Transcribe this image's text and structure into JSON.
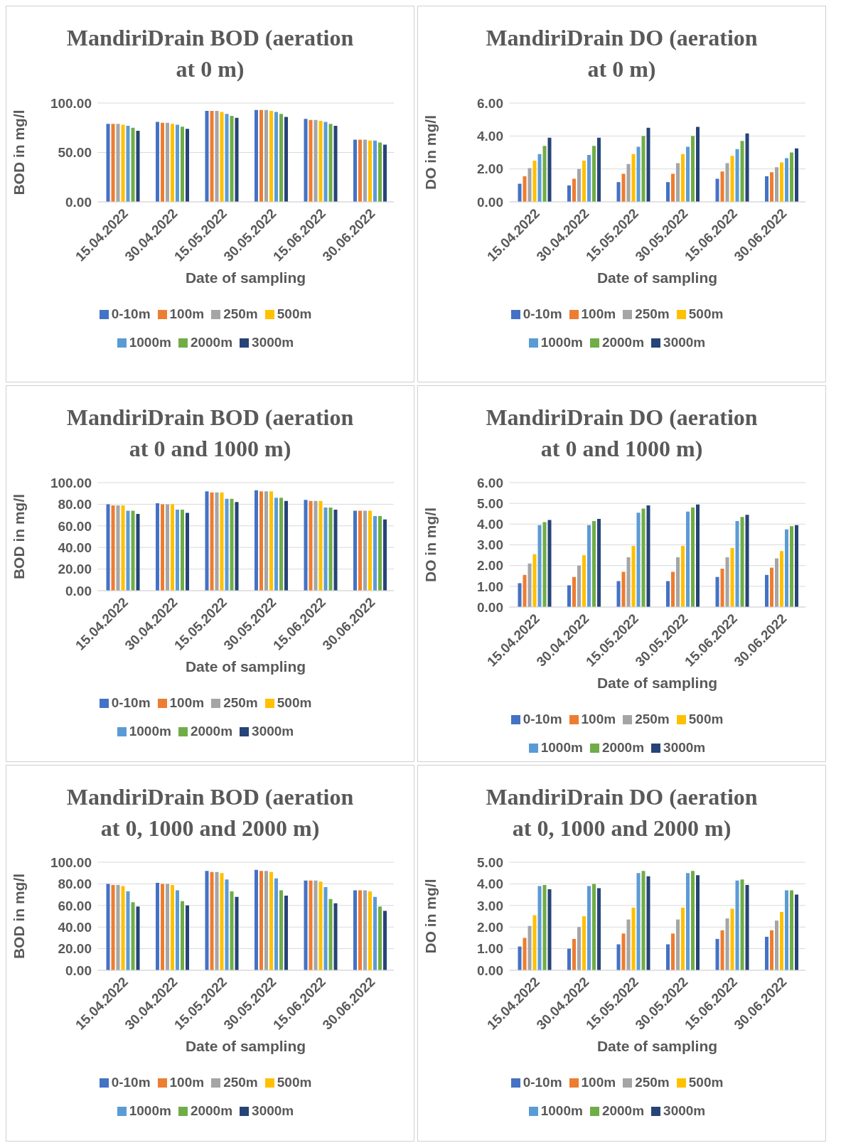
{
  "chart_data": [
    {
      "type": "bar",
      "title": "MandiriDrain BOD (aeration at 0 m)",
      "xlabel": "Date of sampling",
      "ylabel": "BOD in mg/l",
      "categories": [
        "15.04.2022",
        "30.04.2022",
        "15.05.2022",
        "30.05.2022",
        "15.06.2022",
        "30.06.2022"
      ],
      "ylim": [
        0,
        100
      ],
      "yticks": [
        {
          "value": 0,
          "label": "0.00"
        },
        {
          "value": 50,
          "label": "50.00"
        },
        {
          "value": 100,
          "label": "100.00"
        }
      ],
      "grid": "y",
      "legend": "bottom",
      "series": [
        {
          "name": "0-10m",
          "color": "#4472c4",
          "values": [
            79,
            81,
            92,
            93,
            84,
            63
          ]
        },
        {
          "name": "100m",
          "color": "#ed7d31",
          "values": [
            79,
            80,
            92,
            93,
            83,
            63
          ]
        },
        {
          "name": "250m",
          "color": "#a5a5a5",
          "values": [
            79,
            80,
            92,
            93,
            83,
            63
          ]
        },
        {
          "name": "500m",
          "color": "#ffc000",
          "values": [
            78,
            79,
            91,
            92,
            82,
            62
          ]
        },
        {
          "name": "1000m",
          "color": "#5b9bd5",
          "values": [
            77,
            78,
            89,
            91,
            81,
            62
          ]
        },
        {
          "name": "2000m",
          "color": "#70ad47",
          "values": [
            75,
            76,
            87,
            89,
            79,
            60
          ]
        },
        {
          "name": "3000m",
          "color": "#264478",
          "values": [
            72,
            74,
            85,
            86,
            77,
            58
          ]
        }
      ]
    },
    {
      "type": "bar",
      "title": "MandiriDrain DO (aeration at 0 m)",
      "xlabel": "Date of sampling",
      "ylabel": "DO in mg/l",
      "categories": [
        "15.04.2022",
        "30.04.2022",
        "15.05.2022",
        "30.05.2022",
        "15.06.2022",
        "30.06.2022"
      ],
      "ylim": [
        0,
        6
      ],
      "yticks": [
        {
          "value": 0,
          "label": "0.00"
        },
        {
          "value": 2,
          "label": "2.00"
        },
        {
          "value": 4,
          "label": "4.00"
        },
        {
          "value": 6,
          "label": "6.00"
        }
      ],
      "grid": "y",
      "legend": "bottom",
      "series": [
        {
          "name": "0-10m",
          "color": "#4472c4",
          "values": [
            1.1,
            1.0,
            1.2,
            1.2,
            1.4,
            1.55
          ]
        },
        {
          "name": "100m",
          "color": "#ed7d31",
          "values": [
            1.55,
            1.4,
            1.7,
            1.7,
            1.85,
            1.8
          ]
        },
        {
          "name": "250m",
          "color": "#a5a5a5",
          "values": [
            2.05,
            2.0,
            2.3,
            2.35,
            2.35,
            2.1
          ]
        },
        {
          "name": "500m",
          "color": "#ffc000",
          "values": [
            2.5,
            2.5,
            2.9,
            2.9,
            2.8,
            2.4
          ]
        },
        {
          "name": "1000m",
          "color": "#5b9bd5",
          "values": [
            2.9,
            2.85,
            3.35,
            3.35,
            3.2,
            2.65
          ]
        },
        {
          "name": "2000m",
          "color": "#70ad47",
          "values": [
            3.4,
            3.4,
            4.0,
            4.0,
            3.7,
            3.0
          ]
        },
        {
          "name": "3000m",
          "color": "#264478",
          "values": [
            3.9,
            3.9,
            4.5,
            4.55,
            4.15,
            3.25
          ]
        }
      ]
    },
    {
      "type": "bar",
      "title": "MandiriDrain BOD (aeration at 0 and 1000 m)",
      "xlabel": "Date of sampling",
      "ylabel": "BOD in mg/l",
      "categories": [
        "15.04.2022",
        "30.04.2022",
        "15.05.2022",
        "30.05.2022",
        "15.06.2022",
        "30.06.2022"
      ],
      "ylim": [
        0,
        100
      ],
      "yticks": [
        {
          "value": 0,
          "label": "0.00"
        },
        {
          "value": 20,
          "label": "20.00"
        },
        {
          "value": 40,
          "label": "40.00"
        },
        {
          "value": 60,
          "label": "60.00"
        },
        {
          "value": 80,
          "label": "80.00"
        },
        {
          "value": 100,
          "label": "100.00"
        }
      ],
      "grid": "y",
      "legend": "bottom",
      "series": [
        {
          "name": "0-10m",
          "color": "#4472c4",
          "values": [
            80,
            81,
            92,
            93,
            84,
            74
          ]
        },
        {
          "name": "100m",
          "color": "#ed7d31",
          "values": [
            79,
            80,
            91,
            92,
            83,
            74
          ]
        },
        {
          "name": "250m",
          "color": "#a5a5a5",
          "values": [
            79,
            80,
            91,
            92,
            83,
            74
          ]
        },
        {
          "name": "500m",
          "color": "#ffc000",
          "values": [
            79,
            80,
            91,
            92,
            83,
            74
          ]
        },
        {
          "name": "1000m",
          "color": "#5b9bd5",
          "values": [
            74,
            75,
            85,
            86,
            77,
            69
          ]
        },
        {
          "name": "2000m",
          "color": "#70ad47",
          "values": [
            74,
            75,
            85,
            86,
            77,
            69
          ]
        },
        {
          "name": "3000m",
          "color": "#264478",
          "values": [
            71,
            72,
            82,
            83,
            75,
            66
          ]
        }
      ]
    },
    {
      "type": "bar",
      "title": "MandiriDrain DO (aeration at 0 and 1000 m)",
      "xlabel": "Date of sampling",
      "ylabel": "DO in mg/l",
      "categories": [
        "15.04.2022",
        "30.04.2022",
        "15.05.2022",
        "30.05.2022",
        "15.06.2022",
        "30.06.2022"
      ],
      "ylim": [
        0,
        6
      ],
      "yticks": [
        {
          "value": 0,
          "label": "0.00"
        },
        {
          "value": 1,
          "label": "1.00"
        },
        {
          "value": 2,
          "label": "2.00"
        },
        {
          "value": 3,
          "label": "3.00"
        },
        {
          "value": 4,
          "label": "4.00"
        },
        {
          "value": 5,
          "label": "5.00"
        },
        {
          "value": 6,
          "label": "6.00"
        }
      ],
      "grid": "y",
      "legend": "bottom",
      "series": [
        {
          "name": "0-10m",
          "color": "#4472c4",
          "values": [
            1.15,
            1.05,
            1.25,
            1.25,
            1.45,
            1.55
          ]
        },
        {
          "name": "100m",
          "color": "#ed7d31",
          "values": [
            1.55,
            1.45,
            1.7,
            1.7,
            1.85,
            1.9
          ]
        },
        {
          "name": "250m",
          "color": "#a5a5a5",
          "values": [
            2.1,
            2.0,
            2.4,
            2.4,
            2.4,
            2.35
          ]
        },
        {
          "name": "500m",
          "color": "#ffc000",
          "values": [
            2.55,
            2.5,
            2.95,
            2.95,
            2.85,
            2.7
          ]
        },
        {
          "name": "1000m",
          "color": "#5b9bd5",
          "values": [
            3.95,
            3.95,
            4.55,
            4.6,
            4.15,
            3.75
          ]
        },
        {
          "name": "2000m",
          "color": "#70ad47",
          "values": [
            4.1,
            4.15,
            4.75,
            4.8,
            4.35,
            3.9
          ]
        },
        {
          "name": "3000m",
          "color": "#264478",
          "values": [
            4.2,
            4.25,
            4.9,
            4.95,
            4.45,
            3.95
          ]
        }
      ]
    },
    {
      "type": "bar",
      "title": "MandiriDrain BOD (aeration at 0, 1000 and 2000 m)",
      "xlabel": "Date of sampling",
      "ylabel": "BOD in mg/l",
      "categories": [
        "15.04.2022",
        "30.04.2022",
        "15.05.2022",
        "30.05.2022",
        "15.06.2022",
        "30.06.2022"
      ],
      "ylim": [
        0,
        100
      ],
      "yticks": [
        {
          "value": 0,
          "label": "0.00"
        },
        {
          "value": 20,
          "label": "20.00"
        },
        {
          "value": 40,
          "label": "40.00"
        },
        {
          "value": 60,
          "label": "60.00"
        },
        {
          "value": 80,
          "label": "80.00"
        },
        {
          "value": 100,
          "label": "100.00"
        }
      ],
      "grid": "y",
      "legend": "bottom",
      "series": [
        {
          "name": "0-10m",
          "color": "#4472c4",
          "values": [
            80,
            81,
            92,
            93,
            83,
            74
          ]
        },
        {
          "name": "100m",
          "color": "#ed7d31",
          "values": [
            79,
            80,
            91,
            92,
            83,
            74
          ]
        },
        {
          "name": "250m",
          "color": "#a5a5a5",
          "values": [
            79,
            80,
            91,
            92,
            83,
            74
          ]
        },
        {
          "name": "500m",
          "color": "#ffc000",
          "values": [
            78,
            79,
            90,
            91,
            82,
            73
          ]
        },
        {
          "name": "1000m",
          "color": "#5b9bd5",
          "values": [
            73,
            74,
            84,
            85,
            77,
            68
          ]
        },
        {
          "name": "2000m",
          "color": "#70ad47",
          "values": [
            63,
            64,
            73,
            74,
            66,
            59
          ]
        },
        {
          "name": "3000m",
          "color": "#264478",
          "values": [
            59,
            60,
            68,
            69,
            62,
            55
          ]
        }
      ]
    },
    {
      "type": "bar",
      "title": "MandiriDrain DO (aeration at 0, 1000 and 2000 m)",
      "xlabel": "Date of sampling",
      "ylabel": "DO in mg/l",
      "categories": [
        "15.04.2022",
        "30.04.2022",
        "15.05.2022",
        "30.05.2022",
        "15.06.2022",
        "30.06.2022"
      ],
      "ylim": [
        0,
        5
      ],
      "yticks": [
        {
          "value": 0,
          "label": "0.00"
        },
        {
          "value": 1,
          "label": "1.00"
        },
        {
          "value": 2,
          "label": "2.00"
        },
        {
          "value": 3,
          "label": "3.00"
        },
        {
          "value": 4,
          "label": "4.00"
        },
        {
          "value": 5,
          "label": "5.00"
        }
      ],
      "grid": "y",
      "legend": "bottom",
      "series": [
        {
          "name": "0-10m",
          "color": "#4472c4",
          "values": [
            1.1,
            1.0,
            1.2,
            1.2,
            1.45,
            1.55
          ]
        },
        {
          "name": "100m",
          "color": "#ed7d31",
          "values": [
            1.5,
            1.45,
            1.7,
            1.7,
            1.85,
            1.85
          ]
        },
        {
          "name": "250m",
          "color": "#a5a5a5",
          "values": [
            2.05,
            2.0,
            2.35,
            2.35,
            2.4,
            2.3
          ]
        },
        {
          "name": "500m",
          "color": "#ffc000",
          "values": [
            2.55,
            2.5,
            2.9,
            2.9,
            2.85,
            2.7
          ]
        },
        {
          "name": "1000m",
          "color": "#5b9bd5",
          "values": [
            3.9,
            3.9,
            4.5,
            4.5,
            4.15,
            3.7
          ]
        },
        {
          "name": "2000m",
          "color": "#70ad47",
          "values": [
            3.95,
            4.0,
            4.6,
            4.6,
            4.2,
            3.7
          ]
        },
        {
          "name": "3000m",
          "color": "#264478",
          "values": [
            3.75,
            3.8,
            4.35,
            4.4,
            3.95,
            3.5
          ]
        }
      ]
    }
  ]
}
